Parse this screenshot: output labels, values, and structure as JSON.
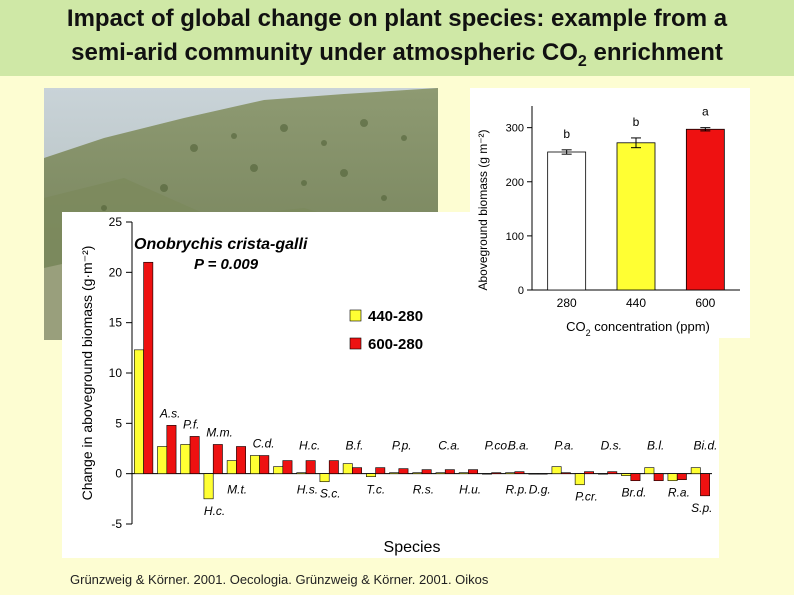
{
  "page": {
    "title_line1": "Impact of global change on plant species: example from a",
    "title_line2_prefix": "semi-arid community under atmospheric CO",
    "title_line2_sub": "2",
    "title_line2_suffix": " enrichment",
    "citation": "Grünzweig & Körner. 2001. Oecologia. Grünzweig & Körner. 2001. Oikos"
  },
  "colors": {
    "yellow": "#ffff33",
    "red": "#ee1111",
    "white": "#ffffff",
    "title_bg": "#cfe8a6",
    "page_bg": "#fdfdd2"
  },
  "chart_data": [
    {
      "type": "bar",
      "id": "species-response",
      "title": "Onobrychis crista-galli",
      "subtitle": "P = 0.009",
      "xlabel": "Species",
      "ylabel": "Change in aboveground biomass (g·m⁻²)",
      "ylim": [
        -5,
        25
      ],
      "yticks": [
        -5,
        0,
        5,
        10,
        15,
        20,
        25
      ],
      "legend": "right",
      "series": [
        {
          "name": "440-280",
          "color": "#ffff33",
          "values": [
            12.3,
            2.7,
            2.9,
            -2.5,
            1.3,
            1.8,
            0.7,
            0.1,
            -0.8,
            1.0,
            -0.3,
            0.1,
            0.1,
            0.1,
            0.1,
            0.0,
            0.1,
            0.0,
            0.7,
            -1.1,
            0.0,
            -0.2,
            0.6,
            -0.7,
            0.6
          ]
        },
        {
          "name": "600-280",
          "color": "#ee1111",
          "values": [
            21.0,
            4.8,
            3.7,
            2.9,
            2.7,
            1.8,
            1.3,
            1.3,
            1.3,
            0.6,
            0.6,
            0.5,
            0.4,
            0.4,
            0.4,
            0.1,
            0.2,
            0.0,
            0.1,
            0.2,
            0.2,
            -0.7,
            -0.7,
            -0.6,
            -2.2
          ]
        }
      ],
      "labels_upper": [
        {
          "text": "A.s.",
          "idx": 1
        },
        {
          "text": "P.f.",
          "idx": 2
        },
        {
          "text": "M.m.",
          "idx": 3
        },
        {
          "text": "C.d.",
          "idx": 5
        },
        {
          "text": "H.c.",
          "idx": 7
        },
        {
          "text": "B.f.",
          "idx": 9
        },
        {
          "text": "P.p.",
          "idx": 11
        },
        {
          "text": "C.a.",
          "idx": 13
        },
        {
          "text": "P.co.",
          "idx": 15
        },
        {
          "text": "B.a.",
          "idx": 16
        },
        {
          "text": "P.a.",
          "idx": 18
        },
        {
          "text": "D.s.",
          "idx": 20
        },
        {
          "text": "B.l.",
          "idx": 22
        },
        {
          "text": "Bi.d.",
          "idx": 24
        }
      ],
      "labels_lower": [
        {
          "text": "H.c.",
          "idx": 3
        },
        {
          "text": "M.t.",
          "idx": 4
        },
        {
          "text": "H.s.",
          "idx": 7
        },
        {
          "text": "S.c.",
          "idx": 8
        },
        {
          "text": "T.c.",
          "idx": 10
        },
        {
          "text": "R.s.",
          "idx": 12
        },
        {
          "text": "H.u.",
          "idx": 14
        },
        {
          "text": "R.p.",
          "idx": 16
        },
        {
          "text": "D.g.",
          "idx": 17
        },
        {
          "text": "P.cr.",
          "idx": 19
        },
        {
          "text": "Br.d.",
          "idx": 21
        },
        {
          "text": "R.a.",
          "idx": 23
        },
        {
          "text": "S.p.",
          "idx": 24
        }
      ]
    },
    {
      "type": "bar",
      "id": "co2-biomass",
      "xlabel_prefix": "CO",
      "xlabel_sub": "2",
      "xlabel_suffix": " concentration (ppm)",
      "ylabel": "Aboveground biomass (g m⁻²)",
      "ylim": [
        0,
        340
      ],
      "yticks": [
        0,
        100,
        200,
        300
      ],
      "categories": [
        "280",
        "440",
        "600"
      ],
      "values": [
        255,
        272,
        297
      ],
      "errors": [
        4,
        9,
        3
      ],
      "colors": [
        "#ffffff",
        "#ffff33",
        "#ee1111"
      ],
      "significance": [
        "b",
        "b",
        "a"
      ]
    }
  ]
}
